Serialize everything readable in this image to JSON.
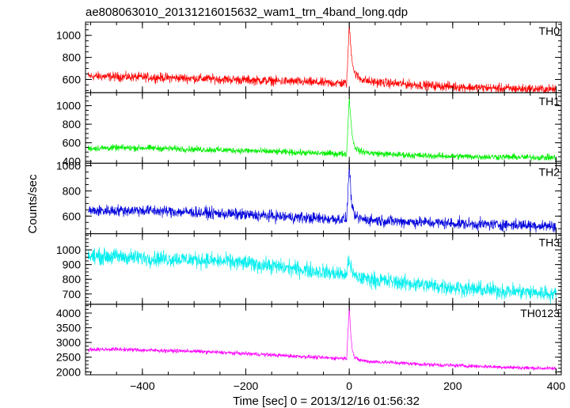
{
  "chart_data": {
    "type": "line",
    "title": "ae808063010_20131216015632_wam1_trn_4band_long.qdp",
    "xlabel": "Time [sec] 0 = 2013/12/16 01:56:32",
    "ylabel": "Counts/sec",
    "xlim": [
      -510,
      410
    ],
    "x_ticks": [
      -400,
      -200,
      0,
      200,
      400
    ],
    "x_tick_labels": [
      "−400",
      "−200",
      "0",
      "200",
      "400"
    ],
    "grid": false,
    "panels": [
      {
        "name": "TH0",
        "color": "#ff0000",
        "ylim": [
          480,
          1120
        ],
        "y_ticks": [
          600,
          800,
          1000
        ],
        "y_tick_labels": [
          "600",
          "800",
          "1000"
        ],
        "series": [
          {
            "x": [
              -505,
              -450,
              -400,
              -300,
              -200,
              -100,
              -50,
              -5,
              0,
              3,
              6,
              10,
              20,
              40,
              80,
              150,
              250,
              330,
              400
            ],
            "y": [
              630,
              625,
              620,
              610,
              595,
              580,
              570,
              565,
              1100,
              900,
              760,
              660,
              610,
              580,
              565,
              545,
              525,
              515,
              510
            ]
          }
        ],
        "noise_amplitude": 35
      },
      {
        "name": "TH1",
        "color": "#00ee00",
        "ylim": [
          380,
          1140
        ],
        "y_ticks": [
          400,
          600,
          800,
          1000
        ],
        "y_tick_labels": [
          "400",
          "600",
          "800",
          "1000"
        ],
        "series": [
          {
            "x": [
              -505,
              -450,
              -400,
              -300,
              -200,
              -100,
              -50,
              -5,
              0,
              3,
              6,
              10,
              20,
              40,
              80,
              150,
              250,
              330,
              400
            ],
            "y": [
              540,
              545,
              545,
              530,
              515,
              495,
              485,
              480,
              1100,
              850,
              680,
              560,
              510,
              490,
              475,
              460,
              450,
              445,
              440
            ]
          }
        ],
        "noise_amplitude": 28
      },
      {
        "name": "TH2",
        "color": "#0000dd",
        "ylim": [
          460,
          1020
        ],
        "y_ticks": [
          600,
          800,
          1000
        ],
        "y_tick_labels": [
          "600",
          "800",
          "1000"
        ],
        "series": [
          {
            "x": [
              -505,
              -450,
              -400,
              -300,
              -200,
              -100,
              -50,
              -5,
              0,
              3,
              6,
              10,
              20,
              40,
              80,
              150,
              250,
              330,
              400
            ],
            "y": [
              640,
              645,
              645,
              630,
              610,
              590,
              580,
              575,
              1010,
              800,
              650,
              600,
              580,
              570,
              560,
              550,
              535,
              530,
              520
            ]
          }
        ],
        "noise_amplitude": 38
      },
      {
        "name": "TH3",
        "color": "#00eeee",
        "ylim": [
          630,
          1110
        ],
        "y_ticks": [
          700,
          800,
          900,
          1000
        ],
        "y_tick_labels": [
          "700",
          "800",
          "900",
          "1000"
        ],
        "series": [
          {
            "x": [
              -505,
              -450,
              -400,
              -300,
              -200,
              -100,
              -50,
              -5,
              0,
              3,
              6,
              10,
              20,
              40,
              80,
              150,
              250,
              330,
              400
            ],
            "y": [
              955,
              955,
              945,
              935,
              910,
              870,
              850,
              830,
              950,
              880,
              840,
              820,
              810,
              800,
              785,
              760,
              730,
              715,
              700
            ]
          }
        ],
        "noise_amplitude": 45
      },
      {
        "name": "TH0123",
        "color": "#ff00ff",
        "ylim": [
          1900,
          4300
        ],
        "y_ticks": [
          2000,
          2500,
          3000,
          3500,
          4000
        ],
        "y_tick_labels": [
          "2000",
          "2500",
          "3000",
          "3500",
          "4000"
        ],
        "series": [
          {
            "x": [
              -505,
              -450,
              -400,
              -300,
              -200,
              -100,
              -50,
              -5,
              0,
              3,
              6,
              10,
              20,
              40,
              80,
              150,
              250,
              330,
              400
            ],
            "y": [
              2760,
              2770,
              2740,
              2700,
              2620,
              2530,
              2480,
              2460,
              4250,
              3300,
              2750,
              2480,
              2400,
              2350,
              2320,
              2250,
              2190,
              2140,
              2110
            ]
          }
        ],
        "noise_amplitude": 55
      }
    ]
  }
}
